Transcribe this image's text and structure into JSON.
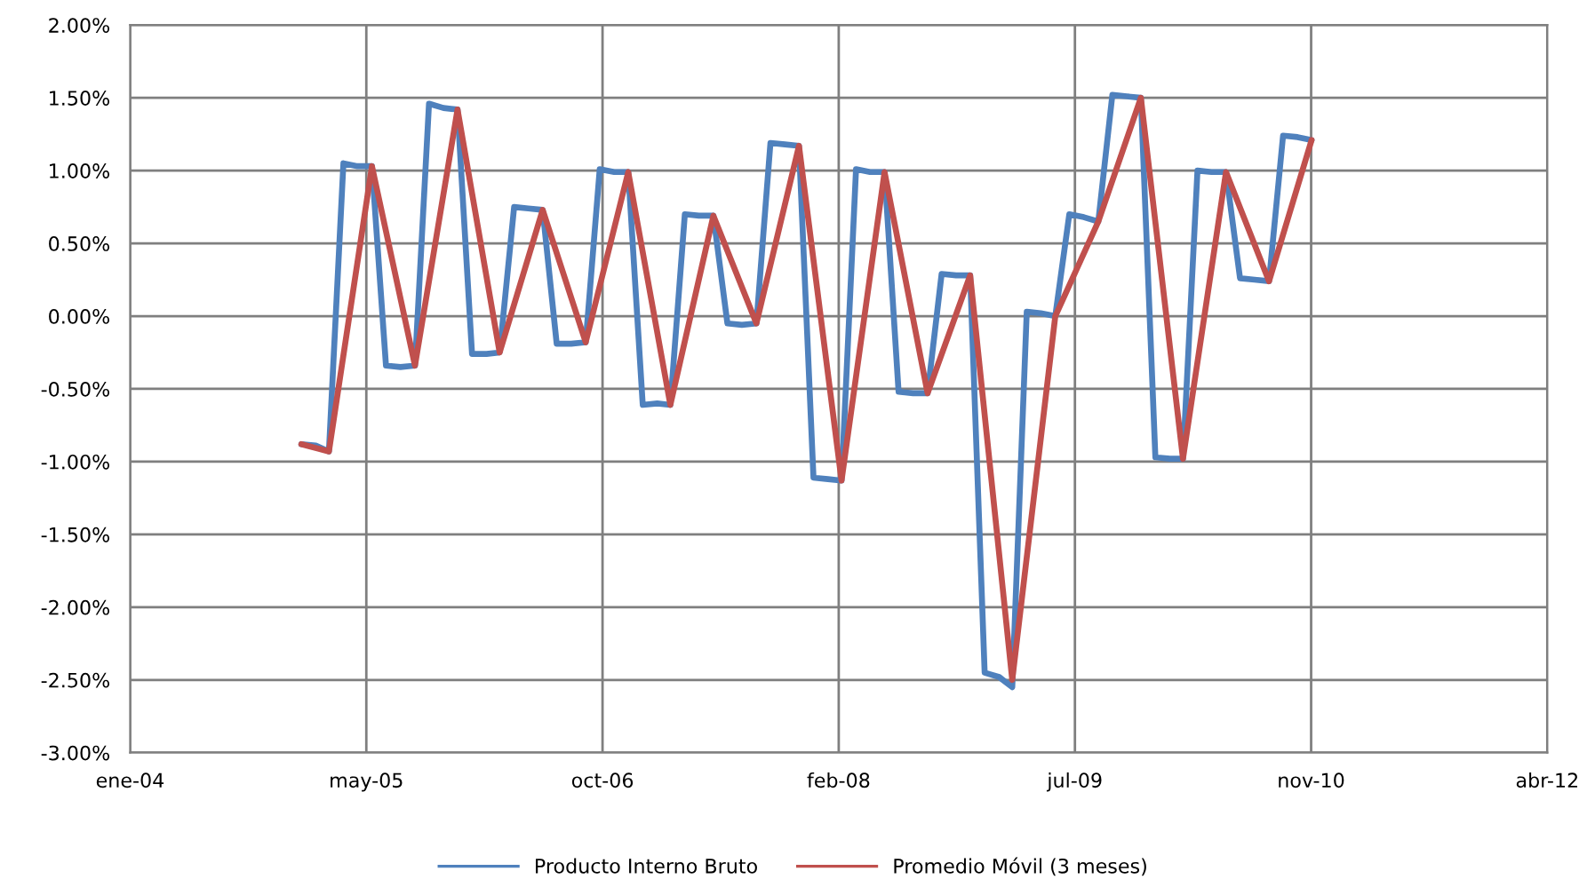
{
  "chart_data": {
    "type": "line",
    "x": [
      "2005-01",
      "2005-02",
      "2005-03",
      "2005-04",
      "2005-05",
      "2005-06",
      "2005-07",
      "2005-08",
      "2005-09",
      "2005-10",
      "2005-11",
      "2005-12",
      "2006-01",
      "2006-02",
      "2006-03",
      "2006-04",
      "2006-05",
      "2006-06",
      "2006-07",
      "2006-08",
      "2006-09",
      "2006-10",
      "2006-11",
      "2006-12",
      "2007-01",
      "2007-02",
      "2007-03",
      "2007-04",
      "2007-05",
      "2007-06",
      "2007-07",
      "2007-08",
      "2007-09",
      "2007-10",
      "2007-11",
      "2007-12",
      "2008-01",
      "2008-02",
      "2008-03",
      "2008-04",
      "2008-05",
      "2008-06",
      "2008-07",
      "2008-08",
      "2008-09",
      "2008-10",
      "2008-11",
      "2008-12",
      "2009-01",
      "2009-02",
      "2009-03",
      "2009-04",
      "2009-05",
      "2009-06",
      "2009-07",
      "2009-08",
      "2009-09",
      "2009-10",
      "2009-11",
      "2009-12",
      "2010-01",
      "2010-02",
      "2010-03",
      "2010-04",
      "2010-05",
      "2010-06",
      "2010-07",
      "2010-08",
      "2010-09",
      "2010-10",
      "2010-11",
      "2010-12"
    ],
    "series": [
      {
        "name": "Producto Interno Bruto",
        "color": "#4f81bd",
        "values": [
          -0.88,
          -0.89,
          -0.93,
          1.05,
          1.03,
          1.03,
          -0.34,
          -0.35,
          -0.34,
          1.46,
          1.43,
          1.42,
          -0.26,
          -0.26,
          -0.25,
          0.75,
          0.74,
          0.73,
          -0.19,
          -0.19,
          -0.18,
          1.01,
          0.99,
          0.99,
          -0.61,
          -0.6,
          -0.61,
          0.7,
          0.69,
          0.69,
          -0.05,
          -0.06,
          -0.05,
          1.19,
          1.18,
          1.17,
          -1.11,
          -1.12,
          -1.13,
          1.01,
          0.99,
          0.99,
          -0.52,
          -0.53,
          -0.53,
          0.29,
          0.28,
          0.28,
          -2.45,
          -2.48,
          -2.55,
          0.03,
          0.02,
          0.0,
          0.7,
          0.68,
          0.65,
          1.52,
          1.51,
          1.5,
          -0.97,
          -0.98,
          -0.98,
          1.0,
          0.99,
          0.99,
          0.26,
          0.25,
          0.24,
          1.24,
          1.23,
          1.21
        ]
      },
      {
        "name": "Promedio Móvil (3 meses)",
        "color": "#c0504d",
        "x": [
          "2005-01",
          "2005-03",
          "2005-06",
          "2005-09",
          "2005-12",
          "2006-03",
          "2006-06",
          "2006-09",
          "2006-12",
          "2007-03",
          "2007-06",
          "2007-09",
          "2007-12",
          "2008-03",
          "2008-06",
          "2008-09",
          "2008-12",
          "2009-03",
          "2009-06",
          "2009-09",
          "2009-12",
          "2010-03",
          "2010-06",
          "2010-09",
          "2010-12"
        ],
        "values": [
          -0.88,
          -0.93,
          1.03,
          -0.34,
          1.42,
          -0.25,
          0.73,
          -0.18,
          0.99,
          -0.61,
          0.69,
          -0.05,
          1.17,
          -1.13,
          0.99,
          -0.53,
          0.28,
          -2.5,
          0.0,
          0.65,
          1.5,
          -0.98,
          0.99,
          0.24,
          1.21
        ]
      }
    ],
    "xlim": [
      "2004-01-01",
      "2012-04-18"
    ],
    "xticks": [
      {
        "value": "2004-01-01",
        "label": "ene-04"
      },
      {
        "value": "2005-05-20",
        "label": "may-05"
      },
      {
        "value": "2006-10-07",
        "label": "oct-06"
      },
      {
        "value": "2008-02-24",
        "label": "feb-08"
      },
      {
        "value": "2009-07-13",
        "label": "jul-09"
      },
      {
        "value": "2010-11-30",
        "label": "nov-10"
      },
      {
        "value": "2012-04-18",
        "label": "abr-12"
      }
    ],
    "ylim": [
      -3,
      2
    ],
    "yticks": [
      {
        "value": -3,
        "label": "-3.00%"
      },
      {
        "value": -2.5,
        "label": "-2.50%"
      },
      {
        "value": -2,
        "label": "-2.00%"
      },
      {
        "value": -1.5,
        "label": "-1.50%"
      },
      {
        "value": -1,
        "label": "-1.00%"
      },
      {
        "value": -0.5,
        "label": "-0.50%"
      },
      {
        "value": 0,
        "label": "0.00%"
      },
      {
        "value": 0.5,
        "label": "0.50%"
      },
      {
        "value": 1,
        "label": "1.00%"
      },
      {
        "value": 1.5,
        "label": "1.50%"
      },
      {
        "value": 2,
        "label": "2.00%"
      }
    ],
    "grid": true,
    "legend": "bottom",
    "marker": "none",
    "line_style": "solid"
  }
}
